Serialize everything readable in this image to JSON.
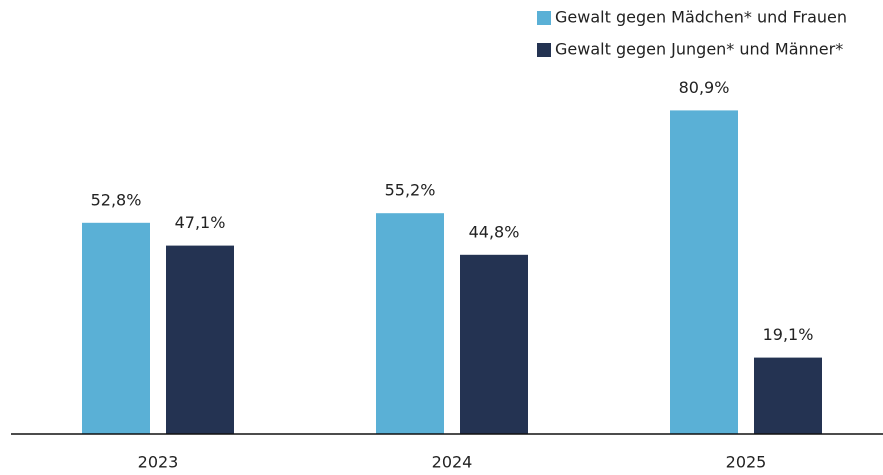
{
  "chart_data": {
    "type": "bar",
    "categories": [
      "2023",
      "2024",
      "2025"
    ],
    "series": [
      {
        "name": "Gewalt gegen Mädchen* und Frauen",
        "color": "#5ab0d6",
        "values": [
          52.8,
          55.2,
          80.9
        ],
        "value_labels": [
          "52,8%",
          "55,2%",
          "80,9%"
        ]
      },
      {
        "name": "Gewalt gegen Jungen* und Männer*",
        "color": "#243352",
        "values": [
          47.1,
          44.8,
          19.1
        ],
        "value_labels": [
          "47,1%",
          "44,8%",
          "19,1%"
        ]
      }
    ],
    "ylim": [
      0,
      100
    ],
    "legend": "top-right"
  }
}
